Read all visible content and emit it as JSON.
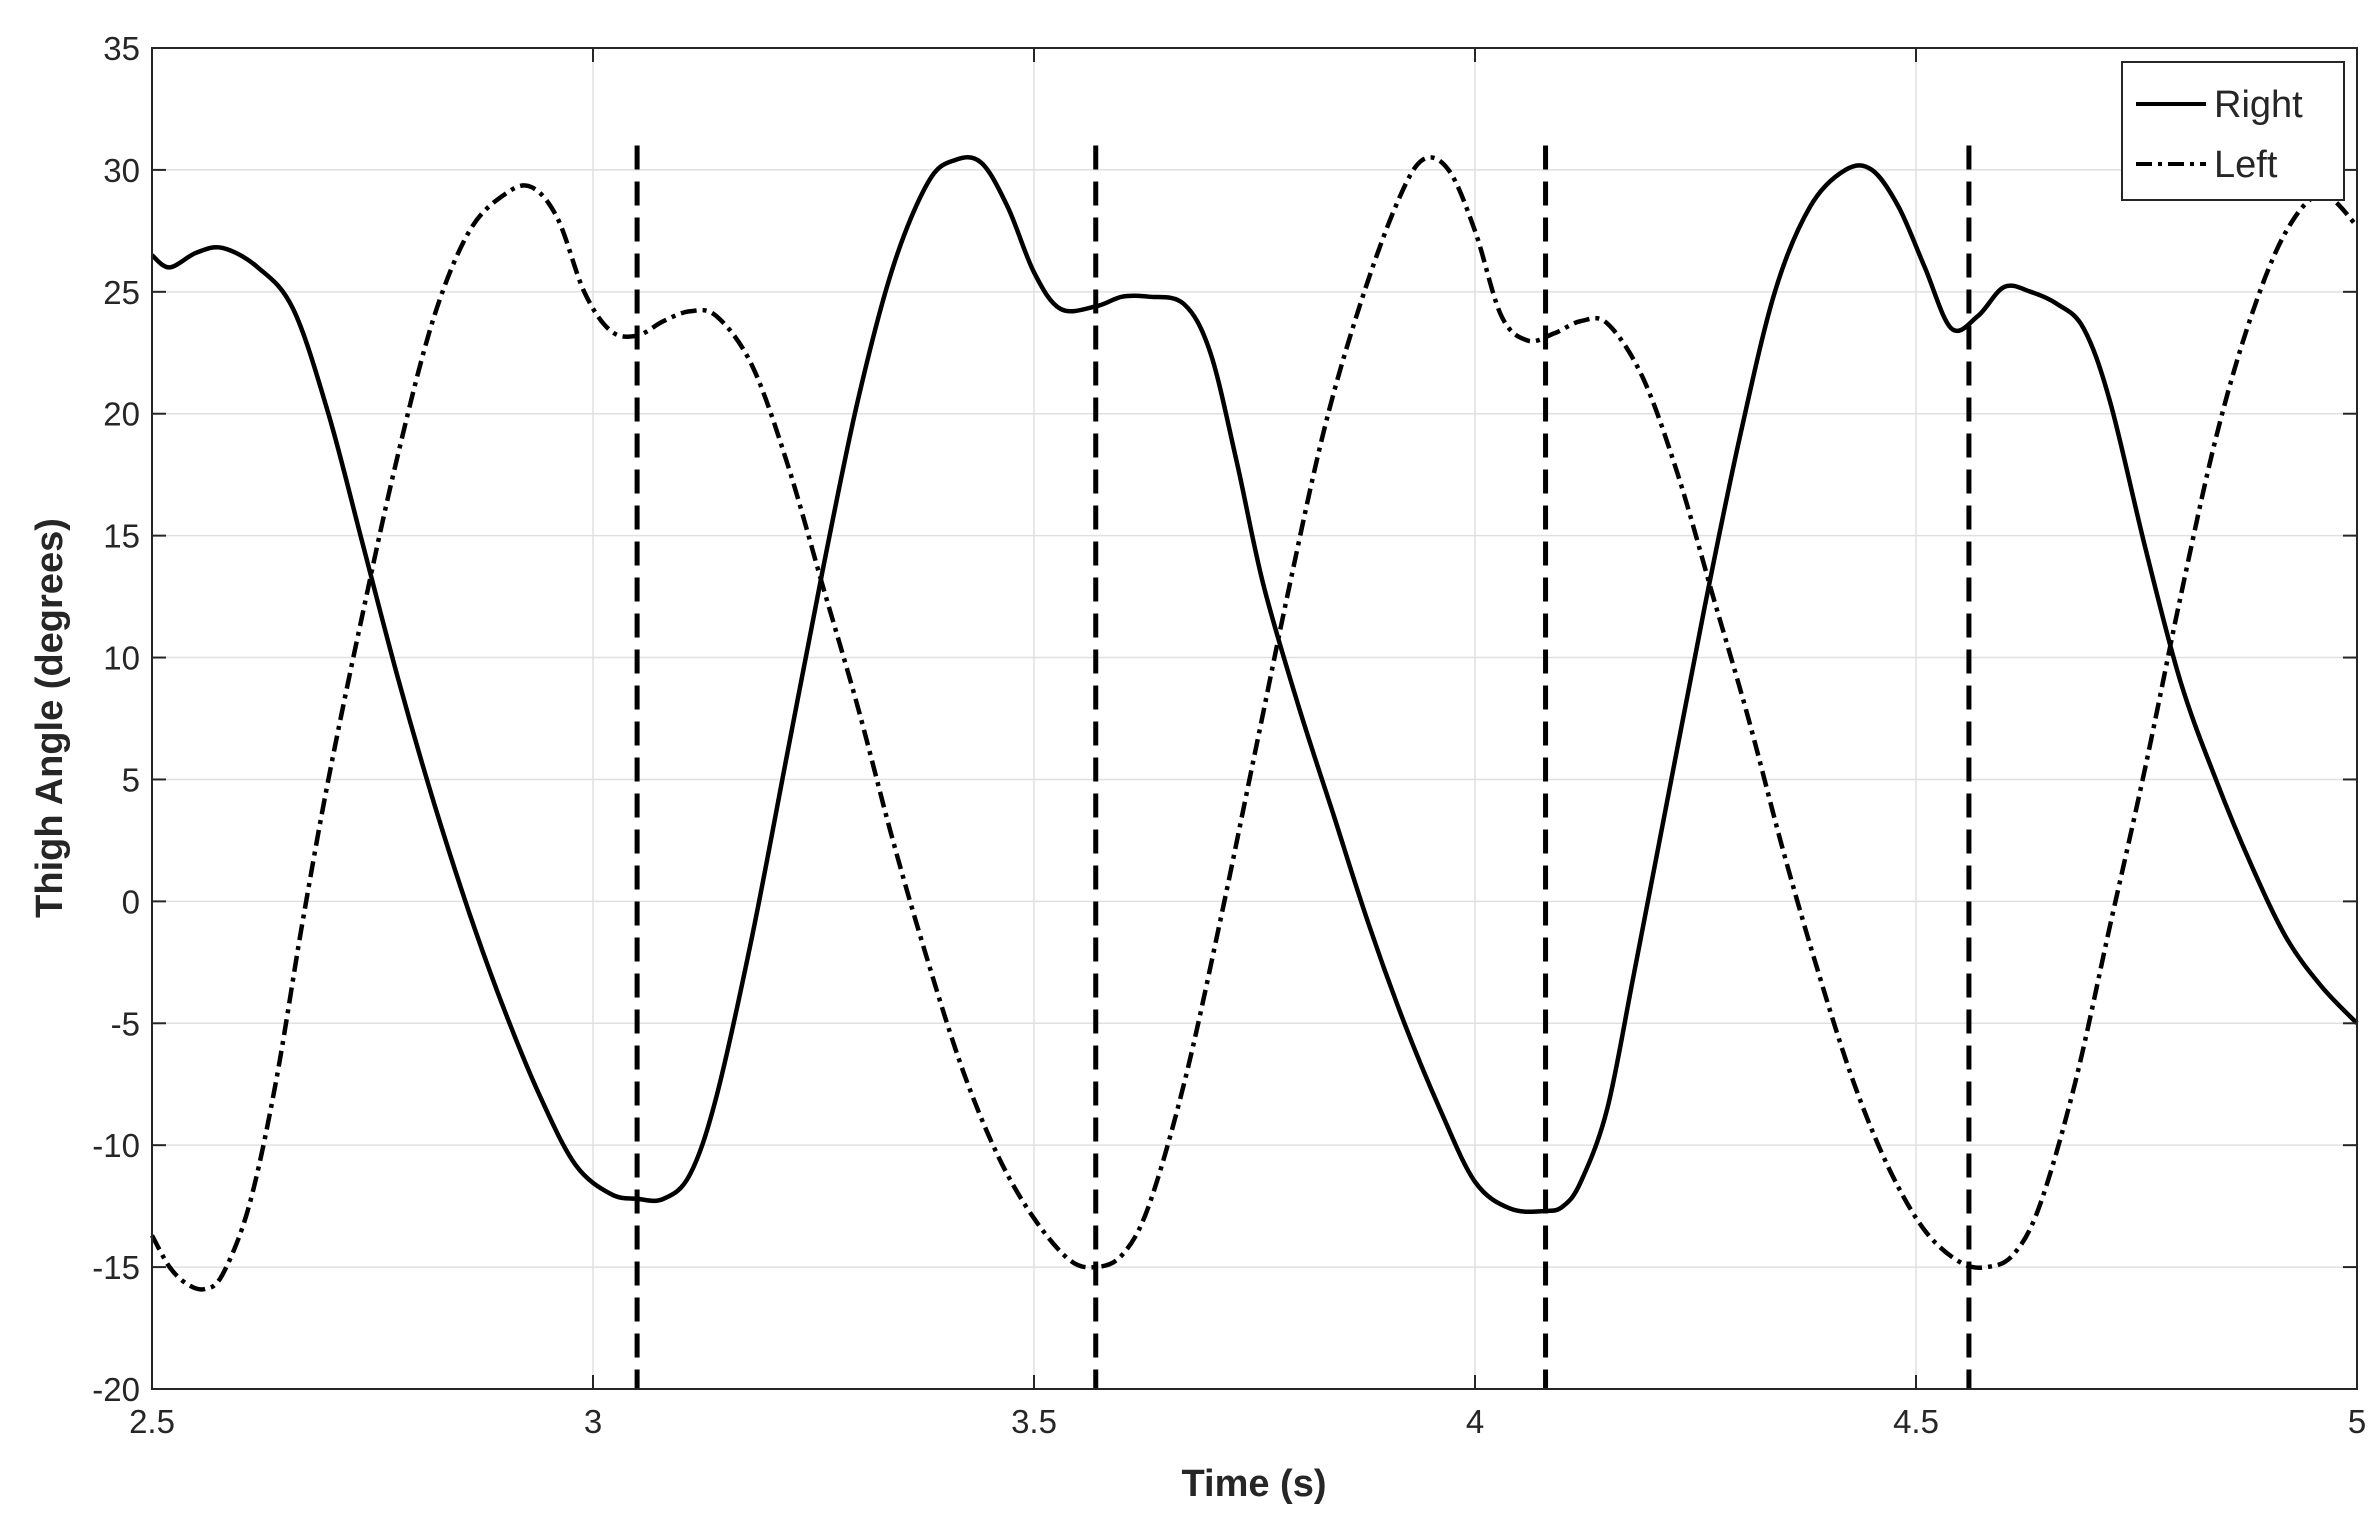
{
  "chart_data": {
    "type": "line",
    "title": "",
    "xlabel": "Time (s)",
    "ylabel": "Thigh Angle (degrees)",
    "xlim": [
      2.5,
      5
    ],
    "ylim": [
      -20,
      35
    ],
    "grid": true,
    "legend_position": "top-right",
    "xticks": [
      2.5,
      3,
      3.5,
      4,
      4.5,
      5
    ],
    "xtick_labels": [
      "2.5",
      "3",
      "3.5",
      "4",
      "4.5",
      "5"
    ],
    "yticks": [
      -20,
      -15,
      -10,
      -5,
      0,
      5,
      10,
      15,
      20,
      25,
      30,
      35
    ],
    "ytick_labels": [
      "-20",
      "-15",
      "-10",
      "-5",
      "0",
      "5",
      "10",
      "15",
      "20",
      "25",
      "30",
      "35"
    ],
    "series": [
      {
        "name": "Right",
        "line_style": "solid",
        "color": "#000000",
        "x": [
          2.5,
          2.52,
          2.55,
          2.58,
          2.62,
          2.66,
          2.7,
          2.74,
          2.78,
          2.82,
          2.86,
          2.9,
          2.94,
          2.98,
          3.02,
          3.05,
          3.08,
          3.11,
          3.14,
          3.18,
          3.22,
          3.26,
          3.3,
          3.34,
          3.38,
          3.41,
          3.44,
          3.47,
          3.5,
          3.53,
          3.57,
          3.6,
          3.63,
          3.67,
          3.7,
          3.73,
          3.76,
          3.8,
          3.84,
          3.88,
          3.92,
          3.96,
          4.0,
          4.04,
          4.08,
          4.1,
          4.12,
          4.15,
          4.18,
          4.22,
          4.26,
          4.3,
          4.34,
          4.38,
          4.42,
          4.45,
          4.48,
          4.51,
          4.54,
          4.57,
          4.6,
          4.63,
          4.66,
          4.69,
          4.72,
          4.76,
          4.8,
          4.84,
          4.88,
          4.92,
          4.96,
          5.0
        ],
        "y": [
          26.5,
          26.0,
          26.6,
          26.8,
          26.0,
          24.3,
          20.0,
          14.5,
          9.0,
          4.0,
          -0.5,
          -4.5,
          -8.0,
          -10.8,
          -12.0,
          -12.2,
          -12.2,
          -11.2,
          -8.0,
          -1.5,
          6.0,
          13.5,
          20.5,
          26.0,
          29.5,
          30.4,
          30.3,
          28.5,
          25.8,
          24.3,
          24.4,
          24.8,
          24.8,
          24.5,
          22.5,
          18.0,
          13.0,
          8.0,
          3.5,
          -1.0,
          -5.0,
          -8.5,
          -11.5,
          -12.6,
          -12.7,
          -12.5,
          -11.5,
          -8.5,
          -3.0,
          4.5,
          12.0,
          19.0,
          25.0,
          28.5,
          30.0,
          30.0,
          28.5,
          26.0,
          23.5,
          24.0,
          25.2,
          25.0,
          24.5,
          23.5,
          20.5,
          14.5,
          9.0,
          5.0,
          1.5,
          -1.5,
          -3.5,
          -5.0
        ]
      },
      {
        "name": "Left",
        "line_style": "dash-dot",
        "color": "#000000",
        "x": [
          2.5,
          2.52,
          2.54,
          2.56,
          2.58,
          2.61,
          2.64,
          2.67,
          2.7,
          2.74,
          2.78,
          2.82,
          2.86,
          2.9,
          2.93,
          2.96,
          2.99,
          3.02,
          3.05,
          3.08,
          3.11,
          3.14,
          3.18,
          3.22,
          3.26,
          3.3,
          3.34,
          3.38,
          3.42,
          3.46,
          3.5,
          3.54,
          3.57,
          3.6,
          3.63,
          3.67,
          3.71,
          3.75,
          3.79,
          3.83,
          3.87,
          3.91,
          3.94,
          3.97,
          4.0,
          4.03,
          4.06,
          4.09,
          4.12,
          4.15,
          4.19,
          4.23,
          4.27,
          4.31,
          4.35,
          4.39,
          4.43,
          4.47,
          4.51,
          4.55,
          4.58,
          4.61,
          4.64,
          4.68,
          4.72,
          4.76,
          4.8,
          4.84,
          4.88,
          4.92,
          4.96,
          5.0
        ],
        "y": [
          -13.7,
          -15.0,
          -15.7,
          -15.9,
          -15.3,
          -12.5,
          -7.5,
          -1.0,
          5.0,
          12.0,
          18.5,
          24.0,
          27.5,
          29.0,
          29.3,
          28.0,
          25.0,
          23.4,
          23.2,
          23.8,
          24.2,
          24.0,
          22.0,
          18.0,
          13.0,
          8.0,
          2.5,
          -2.5,
          -7.0,
          -10.5,
          -13.0,
          -14.7,
          -15.0,
          -14.5,
          -12.5,
          -7.5,
          -1.0,
          6.0,
          13.0,
          19.5,
          24.5,
          28.5,
          30.4,
          30.0,
          27.5,
          24.0,
          23.0,
          23.3,
          23.8,
          23.7,
          21.5,
          17.5,
          12.5,
          7.5,
          2.0,
          -3.0,
          -7.5,
          -11.0,
          -13.5,
          -14.8,
          -15.0,
          -14.5,
          -12.5,
          -7.5,
          -1.0,
          5.5,
          12.5,
          19.0,
          24.0,
          27.5,
          29.0,
          27.7
        ]
      }
    ],
    "event_lines": {
      "line_style": "dashed",
      "color": "#000000",
      "x": [
        3.05,
        3.57,
        4.08,
        4.56
      ],
      "y_range": [
        -20,
        31
      ]
    }
  }
}
